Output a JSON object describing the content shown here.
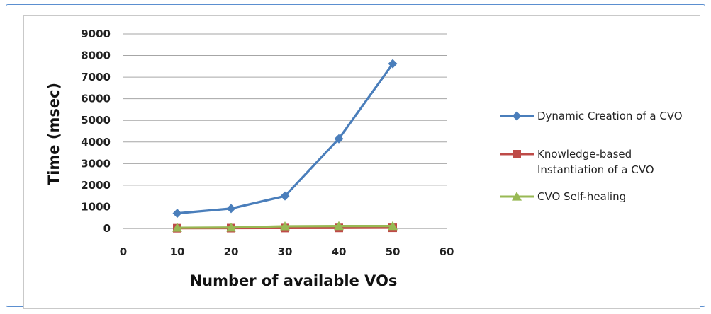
{
  "chart_data": {
    "type": "line",
    "xlabel": "Number  of available VOs",
    "ylabel": "Time (msec)",
    "xlim": [
      0,
      60
    ],
    "ylim": [
      0,
      9000
    ],
    "x_ticks": [
      0,
      10,
      20,
      30,
      40,
      50,
      60
    ],
    "y_ticks": [
      0,
      1000,
      2000,
      3000,
      4000,
      5000,
      6000,
      7000,
      8000,
      9000
    ],
    "grid": "horizontal",
    "legend_position": "right",
    "x": [
      10,
      20,
      30,
      40,
      50
    ],
    "series": [
      {
        "name": "Dynamic Creation of a CVO",
        "values": [
          700,
          920,
          1500,
          4150,
          7620
        ],
        "color": "#4a7ebb",
        "marker": "diamond"
      },
      {
        "name": "Knowledge-based Instantiation  of a CVO",
        "legend_lines": [
          "Knowledge-based",
          "Instantiation  of a CVO"
        ],
        "values": [
          10,
          15,
          20,
          25,
          30
        ],
        "color": "#be4b48",
        "marker": "square"
      },
      {
        "name": "CVO Self-healing",
        "values": [
          30,
          40,
          100,
          110,
          110
        ],
        "color": "#98b954",
        "marker": "triangle"
      }
    ]
  }
}
